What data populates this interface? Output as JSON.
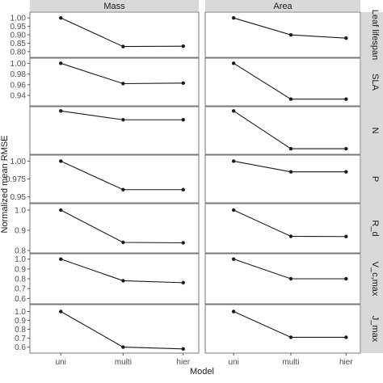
{
  "chart_data": {
    "type": "line",
    "xlabel": "Model",
    "ylabel": "Normalized mean RMSE",
    "categories": [
      "uni",
      "multi",
      "hier"
    ],
    "columns": [
      "Mass",
      "Area"
    ],
    "line_color": "#1a1a1a",
    "strip_color": "#d9d9d9",
    "rows": [
      {
        "label": "Leaf lifespan",
        "ylim": [
          0.78,
          1.02
        ],
        "ticks": [
          0.8,
          0.85,
          0.9,
          0.95,
          1.0
        ],
        "tick_labels": [
          "0.80",
          "0.85",
          "0.90",
          "0.95",
          "1.00"
        ],
        "series": [
          {
            "column": "Mass",
            "values": [
              1.0,
              0.83,
              0.832
            ]
          },
          {
            "column": "Area",
            "values": [
              1.0,
              0.899,
              0.88
            ]
          }
        ]
      },
      {
        "label": "SLA",
        "ylim": [
          0.925,
          1.005
        ],
        "ticks": [
          0.94,
          0.96,
          0.98,
          1.0
        ],
        "tick_labels": [
          "0.94",
          "0.96",
          "0.98",
          "1.00"
        ],
        "series": [
          {
            "column": "Mass",
            "values": [
              1.0,
              0.962,
              0.963
            ]
          },
          {
            "column": "Area",
            "values": [
              1.0,
              0.933,
              0.933
            ]
          }
        ]
      },
      {
        "label": "N",
        "ylim": [
          0.935,
          1.003
        ],
        "ticks": [],
        "tick_labels": [],
        "series": [
          {
            "column": "Mass",
            "values": [
              1.0,
              0.986,
              0.986
            ]
          },
          {
            "column": "Area",
            "values": [
              1.0,
              0.94,
              0.94
            ]
          }
        ]
      },
      {
        "label": "P",
        "ylim": [
          0.945,
          1.005
        ],
        "ticks": [
          0.95,
          0.975,
          1.0
        ],
        "tick_labels": [
          "0.95",
          "0.975",
          "1.00"
        ],
        "series": [
          {
            "column": "Mass",
            "values": [
              1.0,
              0.96,
              0.96
            ]
          },
          {
            "column": "Area",
            "values": [
              1.0,
              0.985,
              0.985
            ]
          }
        ]
      },
      {
        "label": "R_d",
        "ylim": [
          0.8,
          1.02
        ],
        "ticks": [
          0.8,
          0.9,
          1.0
        ],
        "tick_labels": [
          "0.8",
          "0.9",
          "1.0"
        ],
        "series": [
          {
            "column": "Mass",
            "values": [
              1.0,
              0.84,
              0.838
            ]
          },
          {
            "column": "Area",
            "values": [
              1.0,
              0.87,
              0.869
            ]
          }
        ]
      },
      {
        "label": "V_c,max",
        "ylim": [
          0.57,
          1.03
        ],
        "ticks": [
          0.6,
          0.7,
          0.8,
          0.9,
          1.0
        ],
        "tick_labels": [
          "0.6",
          "0.7",
          "0.8",
          "0.9",
          "1.0"
        ],
        "series": [
          {
            "column": "Mass",
            "values": [
              1.0,
              0.78,
              0.76
            ]
          },
          {
            "column": "Area",
            "values": [
              1.0,
              0.8,
              0.8
            ]
          }
        ]
      },
      {
        "label": "J_max",
        "ylim": [
          0.56,
          1.05
        ],
        "ticks": [
          0.6,
          0.7,
          0.8,
          0.9,
          1.0
        ],
        "tick_labels": [
          "0.6",
          "0.7",
          "0.8",
          "0.9",
          "1.0"
        ],
        "series": [
          {
            "column": "Mass",
            "values": [
              1.0,
              0.6,
              0.58
            ]
          },
          {
            "column": "Area",
            "values": [
              1.0,
              0.71,
              0.71
            ]
          }
        ]
      }
    ]
  }
}
